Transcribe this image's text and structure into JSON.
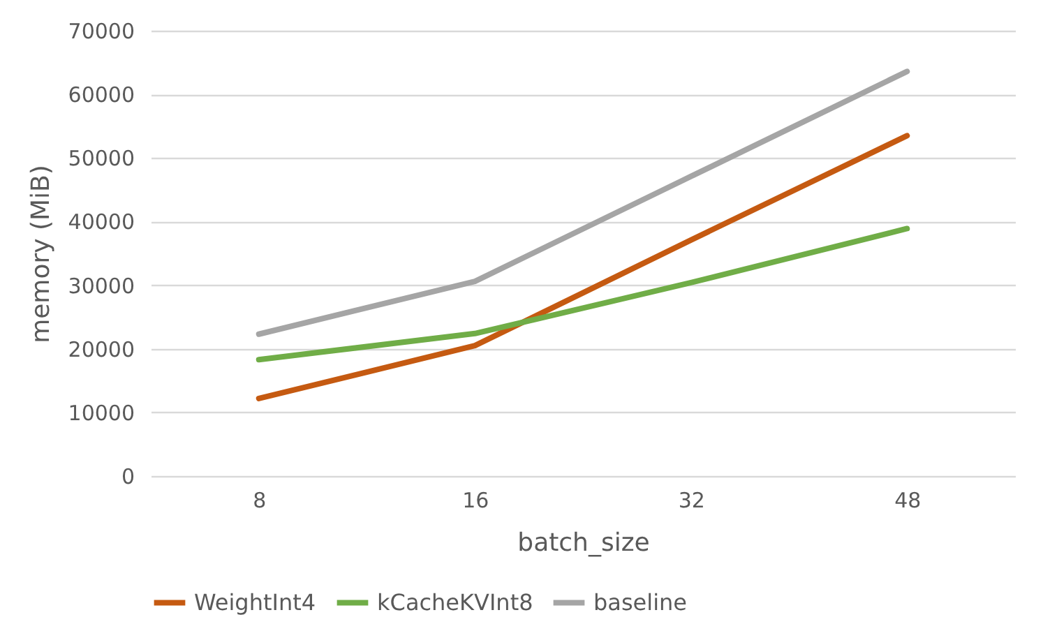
{
  "chart_data": {
    "type": "line",
    "xlabel": "batch_size",
    "ylabel": "memory (MiB)",
    "categories": [
      "8",
      "16",
      "32",
      "48"
    ],
    "series": [
      {
        "name": "WeightInt4",
        "color": "#c55a11",
        "values": [
          12200,
          20500,
          37100,
          53500
        ]
      },
      {
        "name": "kCacheKVInt8",
        "color": "#70ad47",
        "values": [
          18300,
          22400,
          30400,
          38900
        ]
      },
      {
        "name": "baseline",
        "color": "#a5a5a5",
        "values": [
          22300,
          30600,
          47100,
          63600
        ]
      }
    ],
    "ylim": [
      0,
      70000
    ],
    "yticks": [
      0,
      10000,
      20000,
      30000,
      40000,
      50000,
      60000,
      70000
    ],
    "grid": "y",
    "legend": "bottom",
    "marker": "none",
    "line_style": "solid"
  }
}
